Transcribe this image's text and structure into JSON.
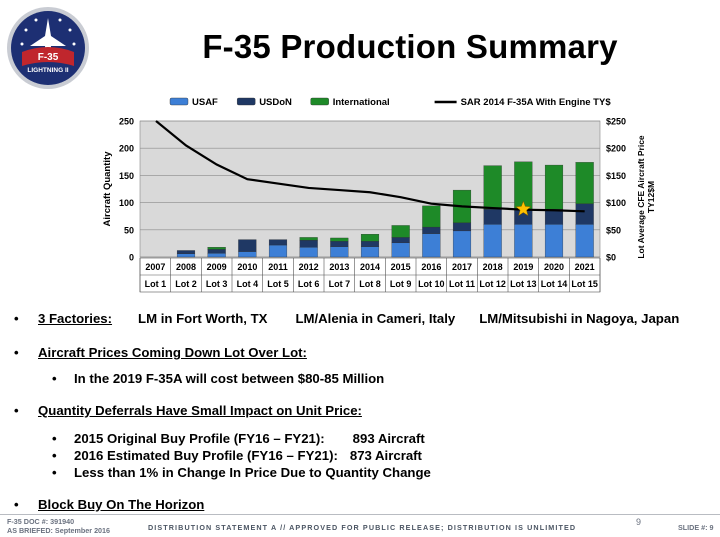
{
  "slide": {
    "title": "F-35 Production Summary",
    "logo_text": "F-35",
    "logo_sub": "LIGHTNING II"
  },
  "chart_data": {
    "type": "bar",
    "stacked": true,
    "legend_position": "top",
    "grid": true,
    "categories": [
      "2007",
      "2008",
      "2009",
      "2010",
      "2011",
      "2012",
      "2013",
      "2014",
      "2015",
      "2016",
      "2017",
      "2018",
      "2019",
      "2020",
      "2021"
    ],
    "lots": [
      "Lot 1",
      "Lot 2",
      "Lot 3",
      "Lot 4",
      "Lot 5",
      "Lot 6",
      "Lot 7",
      "Lot 8",
      "Lot 9",
      "Lot 10",
      "Lot 11",
      "Lot 12",
      "Lot 13",
      "Lot 14",
      "Lot 15"
    ],
    "series": [
      {
        "name": "USAF",
        "color": "#3d7fd6",
        "values": [
          0,
          6,
          7,
          10,
          22,
          18,
          19,
          19,
          26,
          43,
          48,
          60,
          60,
          60,
          60
        ]
      },
      {
        "name": "USDoN",
        "color": "#1f3864",
        "values": [
          0,
          6,
          7,
          22,
          10,
          13,
          10,
          10,
          10,
          12,
          15,
          28,
          26,
          28,
          38
        ]
      },
      {
        "name": "International",
        "color": "#1e8a28",
        "values": [
          0,
          0,
          4,
          0,
          0,
          5,
          6,
          13,
          22,
          39,
          60,
          80,
          89,
          81,
          76
        ]
      }
    ],
    "line_series": {
      "name": "SAR 2014 F-35A With Engine TY$",
      "axis": "right",
      "color": "#000000",
      "values": [
        251,
        205,
        170,
        143,
        135,
        127,
        123,
        119,
        110,
        98,
        93,
        90,
        87,
        86,
        84
      ]
    },
    "marker": {
      "category": "2019",
      "value": 88,
      "shape": "star",
      "color": "#ffc000"
    },
    "ylabel": "Aircraft Quantity",
    "ylim": [
      0,
      250
    ],
    "yticks": [
      "0",
      "50",
      "100",
      "150",
      "200",
      "250"
    ],
    "y2label_line1": "Lot Average CFE Aircraft Price",
    "y2label_line2": "TY12$M",
    "y2lim": [
      0,
      250
    ],
    "y2ticks": [
      "$0",
      "$50",
      "$100",
      "$150",
      "$200",
      "$250"
    ]
  },
  "bullets": {
    "factories_label": "3 Factories:",
    "factory_1": "LM in Fort Worth, TX",
    "factory_2": "LM/Alenia in Cameri, Italy",
    "factory_3": "LM/Mitsubishi in Nagoya, Japan",
    "prices_heading": "Aircraft Prices Coming Down Lot  Over Lot:",
    "prices_sub": "In the 2019 F-35A will cost between $80-85 Million",
    "quantity_heading": "Quantity Deferrals Have Small Impact on Unit Price:",
    "q_sub1_label": "2015 Original Buy Profile (FY16 – FY21):",
    "q_sub1_value": "893 Aircraft",
    "q_sub2_label": "2016 Estimated Buy Profile (FY16 – FY21):",
    "q_sub2_value": "873 Aircraft",
    "q_sub3": "Less than 1% in Change In Price Due to Quantity Change",
    "block_buy": "Block Buy On The Horizon"
  },
  "footer": {
    "doc_line1": "F-35 DOC #: 391940",
    "doc_line2": "AS BRIEFED: September 2016",
    "distribution": "DISTRIBUTION STATEMENT A // APPROVED FOR PUBLIC RELEASE; DISTRIBUTION IS UNLIMITED",
    "page_number": "9",
    "slide_number": "SLIDE #: 9"
  }
}
